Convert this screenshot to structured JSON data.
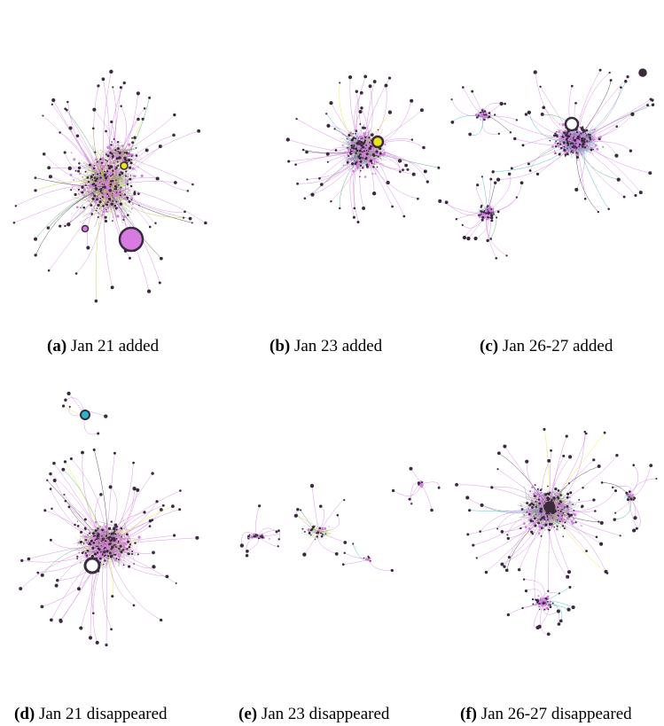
{
  "palette": {
    "magenta": "#d77be3",
    "dark": "#3a2a3e",
    "yellow": "#e6e619",
    "green": "#3aa660",
    "cyan": "#2bb5c8",
    "lime": "#b2cf2b"
  },
  "panels": [
    {
      "letter": "(a)",
      "title": "Jan 21 added"
    },
    {
      "letter": "(b)",
      "title": "Jan 23 added"
    },
    {
      "letter": "(c)",
      "title": "Jan 26-27 added"
    },
    {
      "letter": "(d)",
      "title": "Jan 21 disappeared"
    },
    {
      "letter": "(e)",
      "title": "Jan 23 disappeared"
    },
    {
      "letter": "(f)",
      "title": "Jan 26-27 disappeared"
    }
  ]
}
